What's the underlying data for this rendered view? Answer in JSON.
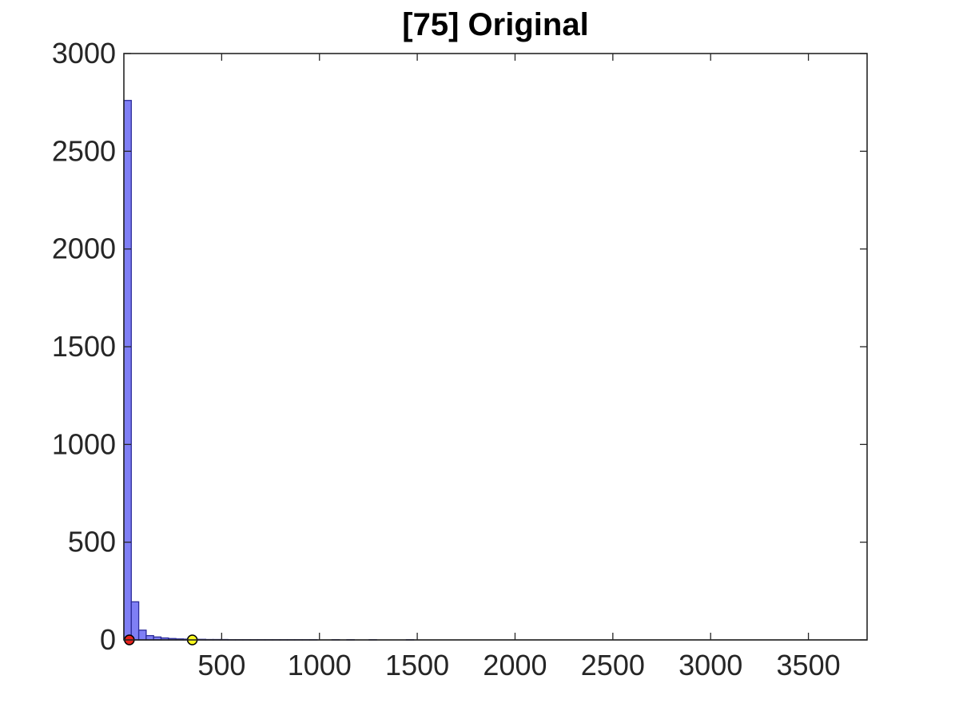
{
  "chart_data": {
    "type": "bar",
    "title": "[75] Original",
    "xlabel": "",
    "ylabel": "",
    "xlim": [
      0,
      3800
    ],
    "ylim": [
      0,
      3000
    ],
    "x_ticks": [
      500,
      1000,
      1500,
      2000,
      2500,
      3000,
      3500
    ],
    "y_ticks": [
      0,
      500,
      1000,
      1500,
      2000,
      2500,
      3000
    ],
    "bin_width": 38,
    "bins": [
      {
        "start": 0,
        "value": 2760
      },
      {
        "start": 38,
        "value": 195
      },
      {
        "start": 76,
        "value": 50
      },
      {
        "start": 114,
        "value": 22
      },
      {
        "start": 152,
        "value": 15
      },
      {
        "start": 190,
        "value": 10
      },
      {
        "start": 228,
        "value": 7
      },
      {
        "start": 266,
        "value": 5
      },
      {
        "start": 304,
        "value": 4
      },
      {
        "start": 342,
        "value": 3
      },
      {
        "start": 380,
        "value": 3
      },
      {
        "start": 418,
        "value": 2
      },
      {
        "start": 456,
        "value": 2
      },
      {
        "start": 494,
        "value": 2
      },
      {
        "start": 532,
        "value": 1
      },
      {
        "start": 570,
        "value": 1
      },
      {
        "start": 608,
        "value": 1
      },
      {
        "start": 646,
        "value": 1
      },
      {
        "start": 684,
        "value": 1
      },
      {
        "start": 722,
        "value": 1
      },
      {
        "start": 760,
        "value": 1
      },
      {
        "start": 798,
        "value": 1
      },
      {
        "start": 836,
        "value": 1
      },
      {
        "start": 874,
        "value": 1
      },
      {
        "start": 912,
        "value": 1
      },
      {
        "start": 950,
        "value": 1
      },
      {
        "start": 1064,
        "value": 1
      },
      {
        "start": 1140,
        "value": 1
      },
      {
        "start": 1254,
        "value": 1
      },
      {
        "start": 1444,
        "value": 1
      }
    ],
    "markers": [
      {
        "x": 28,
        "y": 0,
        "color": "#e8221c"
      },
      {
        "x": 350,
        "y": 0,
        "color": "#f7f71f"
      }
    ],
    "colors": {
      "bar_fill": "#7f7ff5",
      "bar_edge": "#2c2c9a"
    },
    "grid": false,
    "legend": "none"
  }
}
